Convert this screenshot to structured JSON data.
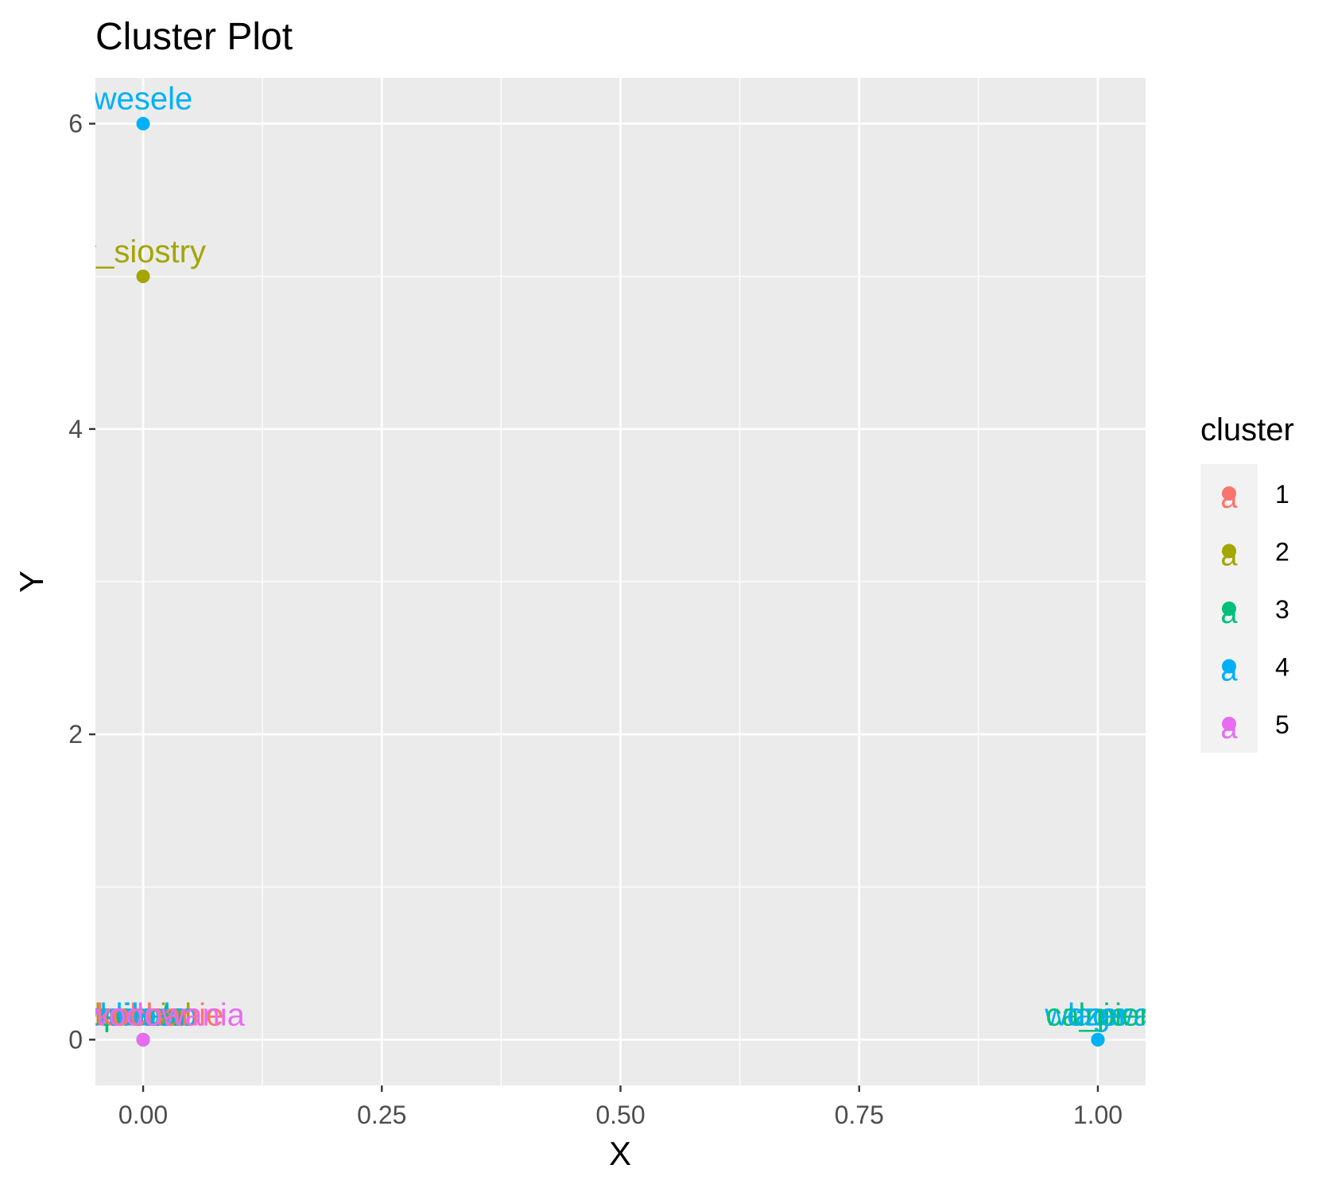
{
  "chart_data": {
    "type": "scatter",
    "title": "Cluster Plot",
    "xlabel": "X",
    "ylabel": "Y",
    "xlim": [
      -0.05,
      1.05
    ],
    "ylim": [
      -0.3,
      6.3
    ],
    "x_ticks": [
      0.0,
      0.25,
      0.5,
      0.75,
      1.0
    ],
    "x_tick_labels": [
      "0.00",
      "0.25",
      "0.50",
      "0.75",
      "1.00"
    ],
    "y_ticks": [
      0,
      2,
      4,
      6
    ],
    "y_tick_labels": [
      "0",
      "2",
      "4",
      "6"
    ],
    "grid": true,
    "legend": {
      "title": "cluster",
      "position": "right",
      "entries": [
        {
          "label": "1",
          "color": "#F8766D"
        },
        {
          "label": "2",
          "color": "#A3A500"
        },
        {
          "label": "3",
          "color": "#00BF7D"
        },
        {
          "label": "4",
          "color": "#00B0F6"
        },
        {
          "label": "5",
          "color": "#E76BF3"
        }
      ]
    },
    "cluster_colors": {
      "1": "#F8766D",
      "2": "#A3A500",
      "3": "#00BF7D",
      "4": "#00B0F6",
      "5": "#E76BF3"
    },
    "points": [
      {
        "label": "wesele",
        "x": 0,
        "y": 6,
        "cluster": "4"
      },
      {
        "label": "y_siostry",
        "x": 0,
        "y": 5,
        "cluster": "2"
      },
      {
        "label": "wlagwa",
        "x": 1,
        "y": 0,
        "cluster": "4"
      },
      {
        "label": "dnie",
        "x": 1,
        "y": 0,
        "cluster": "3"
      },
      {
        "label": "ca_pier",
        "x": 1,
        "y": 0,
        "cluster": "3"
      },
      {
        "label": "ozer",
        "x": 1,
        "y": 0,
        "cluster": "4"
      },
      {
        "label": "szkola",
        "x": 0,
        "y": 0,
        "cluster": "1"
      },
      {
        "label": "praca",
        "x": 0,
        "y": 0,
        "cluster": "3"
      },
      {
        "label": "brat",
        "x": 0,
        "y": 0,
        "cluster": "4"
      },
      {
        "label": "kosciol",
        "x": 0,
        "y": 0,
        "cluster": "2"
      },
      {
        "label": "dziecko",
        "x": 0,
        "y": 0,
        "cluster": "4"
      },
      {
        "label": "swieta",
        "x": 0,
        "y": 0,
        "cluster": "3"
      },
      {
        "label": "milosc",
        "x": 0,
        "y": 0,
        "cluster": "4"
      },
      {
        "label": "zakochanie",
        "x": 0,
        "y": 0,
        "cluster": "1"
      },
      {
        "label": "rozwodowania",
        "x": 0,
        "y": 0,
        "cluster": "5"
      }
    ]
  }
}
